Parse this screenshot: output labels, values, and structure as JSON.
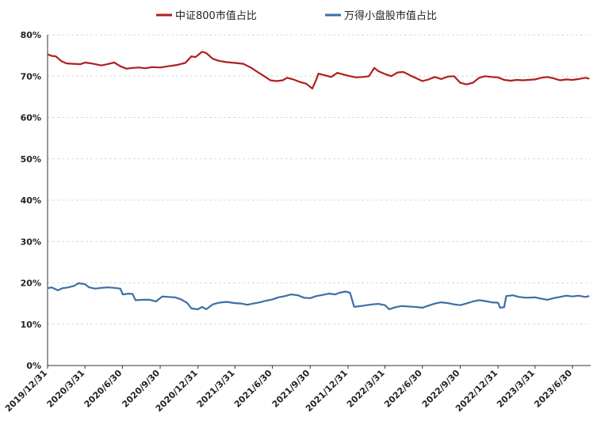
{
  "chart_data": {
    "type": "line",
    "title": "",
    "xlabel": "",
    "ylabel": "",
    "ylim": [
      0,
      80
    ],
    "y_tick_labels": [
      "0%",
      "10%",
      "20%",
      "30%",
      "40%",
      "50%",
      "60%",
      "70%",
      "80%"
    ],
    "x_tick_labels": [
      "2019/12/31",
      "2020/3/31",
      "2020/6/30",
      "2020/9/30",
      "2020/12/31",
      "2021/3/31",
      "2021/6/30",
      "2021/9/30",
      "2021/12/31",
      "2022/3/31",
      "2022/6/30",
      "2022/9/30",
      "2022/12/31",
      "2023/3/31",
      "2023/6/30"
    ],
    "grid": "horizontal",
    "legend_position": "top",
    "series": [
      {
        "name": "中证800市值占比",
        "color": "#b01e1e",
        "values": [
          [
            "2019-12-31",
            75.3
          ],
          [
            "2020-01-10",
            74.9
          ],
          [
            "2020-01-20",
            74.8
          ],
          [
            "2020-02-03",
            73.6
          ],
          [
            "2020-02-15",
            73.1
          ],
          [
            "2020-03-01",
            73.0
          ],
          [
            "2020-03-20",
            72.9
          ],
          [
            "2020-04-01",
            73.3
          ],
          [
            "2020-04-20",
            73.0
          ],
          [
            "2020-05-10",
            72.6
          ],
          [
            "2020-05-25",
            72.9
          ],
          [
            "2020-06-10",
            73.3
          ],
          [
            "2020-06-25",
            72.4
          ],
          [
            "2020-07-10",
            71.8
          ],
          [
            "2020-07-25",
            72.0
          ],
          [
            "2020-08-10",
            72.1
          ],
          [
            "2020-08-25",
            71.9
          ],
          [
            "2020-09-10",
            72.2
          ],
          [
            "2020-09-30",
            72.1
          ],
          [
            "2020-10-20",
            72.4
          ],
          [
            "2020-11-10",
            72.7
          ],
          [
            "2020-11-30",
            73.2
          ],
          [
            "2020-12-15",
            74.8
          ],
          [
            "2020-12-25",
            74.6
          ],
          [
            "2021-01-10",
            75.9
          ],
          [
            "2021-01-20",
            75.6
          ],
          [
            "2021-02-05",
            74.2
          ],
          [
            "2021-02-20",
            73.7
          ],
          [
            "2021-03-10",
            73.4
          ],
          [
            "2021-03-31",
            73.2
          ],
          [
            "2021-04-20",
            73.0
          ],
          [
            "2021-05-10",
            72.0
          ],
          [
            "2021-05-25",
            71.0
          ],
          [
            "2021-06-10",
            70.0
          ],
          [
            "2021-06-25",
            69.0
          ],
          [
            "2021-07-10",
            68.8
          ],
          [
            "2021-07-25",
            69.0
          ],
          [
            "2021-08-05",
            69.6
          ],
          [
            "2021-08-20",
            69.2
          ],
          [
            "2021-09-05",
            68.6
          ],
          [
            "2021-09-20",
            68.2
          ],
          [
            "2021-10-05",
            67.0
          ],
          [
            "2021-10-15",
            69.2
          ],
          [
            "2021-10-20",
            70.6
          ],
          [
            "2021-11-05",
            70.2
          ],
          [
            "2021-11-20",
            69.8
          ],
          [
            "2021-12-05",
            70.8
          ],
          [
            "2021-12-20",
            70.4
          ],
          [
            "2022-01-05",
            70.0
          ],
          [
            "2022-01-20",
            69.7
          ],
          [
            "2022-02-05",
            69.8
          ],
          [
            "2022-02-20",
            70.0
          ],
          [
            "2022-03-05",
            72.0
          ],
          [
            "2022-03-15",
            71.2
          ],
          [
            "2022-03-31",
            70.5
          ],
          [
            "2022-04-15",
            70.0
          ],
          [
            "2022-05-01",
            70.9
          ],
          [
            "2022-05-15",
            71.0
          ],
          [
            "2022-05-31",
            70.2
          ],
          [
            "2022-06-15",
            69.5
          ],
          [
            "2022-06-30",
            68.8
          ],
          [
            "2022-07-15",
            69.2
          ],
          [
            "2022-07-30",
            69.8
          ],
          [
            "2022-08-15",
            69.3
          ],
          [
            "2022-08-31",
            69.9
          ],
          [
            "2022-09-15",
            70.0
          ],
          [
            "2022-09-30",
            68.4
          ],
          [
            "2022-10-15",
            68.0
          ],
          [
            "2022-10-31",
            68.4
          ],
          [
            "2022-11-15",
            69.6
          ],
          [
            "2022-11-30",
            70.0
          ],
          [
            "2022-12-15",
            69.8
          ],
          [
            "2022-12-31",
            69.7
          ],
          [
            "2023-01-15",
            69.1
          ],
          [
            "2023-01-31",
            68.9
          ],
          [
            "2023-02-15",
            69.1
          ],
          [
            "2023-03-01",
            69.0
          ],
          [
            "2023-03-31",
            69.2
          ],
          [
            "2023-04-15",
            69.6
          ],
          [
            "2023-04-30",
            69.8
          ],
          [
            "2023-05-15",
            69.5
          ],
          [
            "2023-05-31",
            69.0
          ],
          [
            "2023-06-15",
            69.2
          ],
          [
            "2023-06-30",
            69.1
          ],
          [
            "2023-07-15",
            69.3
          ],
          [
            "2023-07-31",
            69.6
          ],
          [
            "2023-08-10",
            69.4
          ]
        ]
      },
      {
        "name": "万得小盘股市值占比",
        "color": "#3d6ea5",
        "values": [
          [
            "2019-12-31",
            18.7
          ],
          [
            "2020-01-10",
            18.9
          ],
          [
            "2020-01-25",
            18.2
          ],
          [
            "2020-02-05",
            18.7
          ],
          [
            "2020-02-20",
            18.9
          ],
          [
            "2020-03-05",
            19.3
          ],
          [
            "2020-03-15",
            19.9
          ],
          [
            "2020-03-31",
            19.7
          ],
          [
            "2020-04-10",
            18.9
          ],
          [
            "2020-04-25",
            18.6
          ],
          [
            "2020-05-10",
            18.8
          ],
          [
            "2020-05-25",
            18.9
          ],
          [
            "2020-06-10",
            18.8
          ],
          [
            "2020-06-25",
            18.6
          ],
          [
            "2020-07-01",
            17.2
          ],
          [
            "2020-07-15",
            17.4
          ],
          [
            "2020-07-25",
            17.3
          ],
          [
            "2020-08-01",
            15.8
          ],
          [
            "2020-08-20",
            15.9
          ],
          [
            "2020-09-05",
            15.9
          ],
          [
            "2020-09-20",
            15.5
          ],
          [
            "2020-10-05",
            16.7
          ],
          [
            "2020-10-20",
            16.6
          ],
          [
            "2020-11-05",
            16.5
          ],
          [
            "2020-11-20",
            16.0
          ],
          [
            "2020-12-05",
            15.1
          ],
          [
            "2020-12-15",
            13.8
          ],
          [
            "2020-12-31",
            13.6
          ],
          [
            "2021-01-10",
            14.2
          ],
          [
            "2021-01-20",
            13.6
          ],
          [
            "2021-02-05",
            14.8
          ],
          [
            "2021-02-20",
            15.2
          ],
          [
            "2021-03-10",
            15.4
          ],
          [
            "2021-03-31",
            15.1
          ],
          [
            "2021-04-15",
            15.0
          ],
          [
            "2021-04-30",
            14.7
          ],
          [
            "2021-05-15",
            15.0
          ],
          [
            "2021-05-31",
            15.3
          ],
          [
            "2021-06-15",
            15.7
          ],
          [
            "2021-06-30",
            16.0
          ],
          [
            "2021-07-15",
            16.5
          ],
          [
            "2021-07-31",
            16.8
          ],
          [
            "2021-08-15",
            17.2
          ],
          [
            "2021-08-31",
            17.0
          ],
          [
            "2021-09-15",
            16.4
          ],
          [
            "2021-09-30",
            16.3
          ],
          [
            "2021-10-15",
            16.8
          ],
          [
            "2021-10-31",
            17.1
          ],
          [
            "2021-11-15",
            17.4
          ],
          [
            "2021-11-30",
            17.2
          ],
          [
            "2021-12-10",
            17.6
          ],
          [
            "2021-12-25",
            17.9
          ],
          [
            "2022-01-05",
            17.6
          ],
          [
            "2022-01-15",
            14.2
          ],
          [
            "2022-01-31",
            14.4
          ],
          [
            "2022-02-15",
            14.6
          ],
          [
            "2022-02-28",
            14.8
          ],
          [
            "2022-03-15",
            14.9
          ],
          [
            "2022-03-31",
            14.6
          ],
          [
            "2022-04-10",
            13.6
          ],
          [
            "2022-04-25",
            14.1
          ],
          [
            "2022-05-10",
            14.4
          ],
          [
            "2022-05-25",
            14.3
          ],
          [
            "2022-06-10",
            14.2
          ],
          [
            "2022-06-30",
            14.0
          ],
          [
            "2022-07-15",
            14.5
          ],
          [
            "2022-07-31",
            15.0
          ],
          [
            "2022-08-15",
            15.3
          ],
          [
            "2022-08-31",
            15.1
          ],
          [
            "2022-09-15",
            14.8
          ],
          [
            "2022-09-30",
            14.6
          ],
          [
            "2022-10-15",
            15.0
          ],
          [
            "2022-10-31",
            15.5
          ],
          [
            "2022-11-15",
            15.8
          ],
          [
            "2022-11-30",
            15.6
          ],
          [
            "2022-12-15",
            15.3
          ],
          [
            "2022-12-31",
            15.2
          ],
          [
            "2023-01-05",
            14.0
          ],
          [
            "2023-01-15",
            14.1
          ],
          [
            "2023-01-20",
            16.8
          ],
          [
            "2023-02-05",
            17.0
          ],
          [
            "2023-02-20",
            16.6
          ],
          [
            "2023-03-10",
            16.4
          ],
          [
            "2023-03-31",
            16.5
          ],
          [
            "2023-04-15",
            16.2
          ],
          [
            "2023-04-30",
            15.9
          ],
          [
            "2023-05-15",
            16.3
          ],
          [
            "2023-05-31",
            16.6
          ],
          [
            "2023-06-15",
            16.9
          ],
          [
            "2023-06-30",
            16.7
          ],
          [
            "2023-07-15",
            16.9
          ],
          [
            "2023-07-31",
            16.6
          ],
          [
            "2023-08-10",
            16.8
          ]
        ]
      }
    ]
  }
}
